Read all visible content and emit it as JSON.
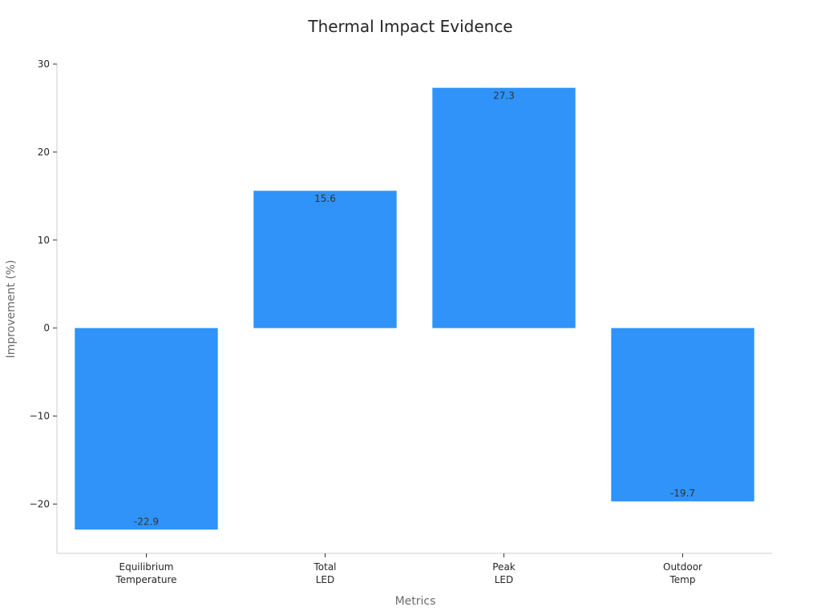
{
  "chart_data": {
    "type": "bar",
    "title": "Thermal Impact Evidence",
    "xlabel": "Metrics",
    "ylabel": "Improvement (%)",
    "categories": [
      [
        "Equilibrium",
        "Temperature"
      ],
      [
        "Total",
        "LED"
      ],
      [
        "Peak",
        "LED"
      ],
      [
        "Outdoor",
        "Temp"
      ]
    ],
    "values": [
      -22.9,
      15.6,
      27.3,
      -19.7
    ],
    "value_labels": [
      "-22.9",
      "15.6",
      "27.3",
      "-19.7"
    ],
    "ylim": [
      -25.6,
      30
    ],
    "yticks": [
      30,
      20,
      10,
      0,
      -10,
      -20
    ],
    "ytick_labels": [
      "30",
      "20",
      "10",
      "0",
      "−10",
      "−20"
    ],
    "grid": false,
    "colors": {
      "bar": "#2f93f9",
      "axis": "#cccccc",
      "tick": "#333333"
    }
  }
}
